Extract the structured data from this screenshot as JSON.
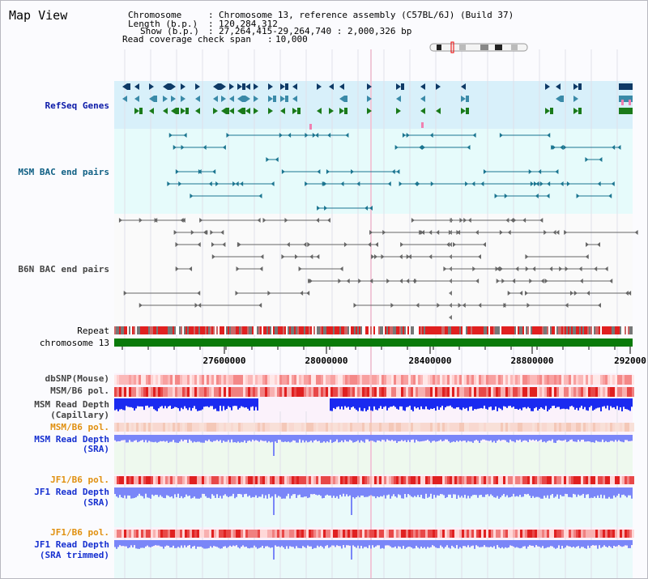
{
  "page_title": "Map View",
  "header": {
    "chromosome_key": "Chromosome",
    "chromosome_value": "Chromosome 13, reference assembly (C57BL/6J) (Build 37)",
    "length_key": "Length (b.p.)",
    "length_value": "120,284,312",
    "show_key": "Show (b.p.)",
    "show_value": "27,264,415-29,264,740 : 2,000,326 bp",
    "coverage_key": "Read coverage check span",
    "coverage_value": "10,000"
  },
  "tracks": {
    "refseq": "RefSeq Genes",
    "msm_bac": "MSM BAC end pairs",
    "b6n_bac": "B6N BAC end pairs",
    "repeat": "Repeat",
    "chromosome": "chromosome 13",
    "dbsnp": "dbSNP(Mouse)",
    "msm_b6_pol": "MSM/B6 pol.",
    "msm_depth_cap_1": "MSM Read Depth",
    "msm_depth_cap_2": "(Capillary)",
    "msm_b6_pol_2": "MSM/B6 pol.",
    "msm_depth_sra_1": "MSM Read Depth",
    "msm_depth_sra_2": "(SRA)",
    "jf1_pol_1": "JF1/B6 pol.",
    "jf1_depth_1": "JF1 Read Depth",
    "jf1_depth_1b": "(SRA)",
    "jf1_pol_2": "JF1/B6 pol.",
    "jf1_depth_2": "JF1 Read Depth",
    "jf1_depth_2b": "(SRA trimmed)"
  },
  "axis_ticks": [
    "27600000",
    "28000000",
    "28400000",
    "28800000",
    "292000"
  ],
  "colors": {
    "refseq_bg": "#d8f0fa",
    "bac_bg": "#e6fbfb",
    "chromosome_bar": "#0a7a0a",
    "repeat_red": "#e02020",
    "depth_blue": "#1a2af0",
    "sra_blue": "#7a86f8"
  }
}
